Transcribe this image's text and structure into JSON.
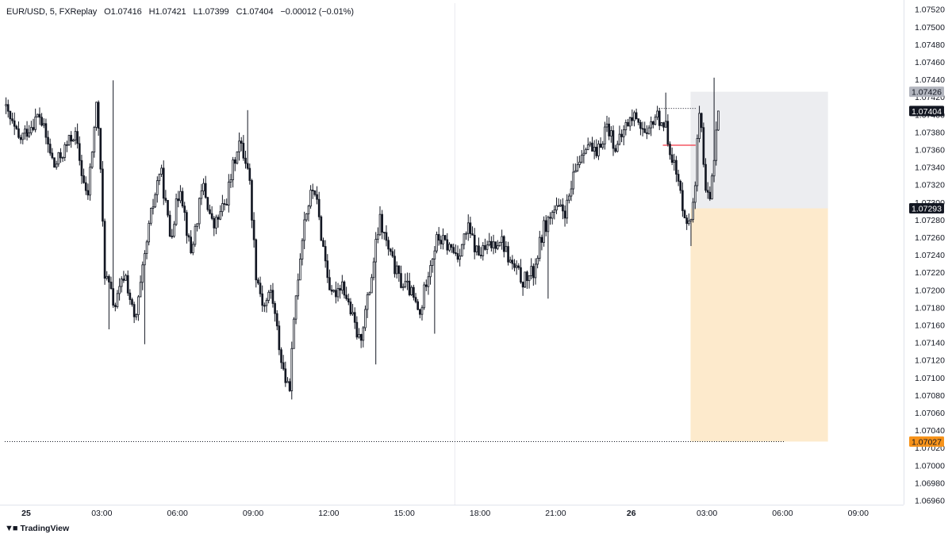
{
  "header": {
    "symbol": "EUR/USD, 5, FXReplay",
    "open": "O1.07416",
    "high": "H1.07421",
    "low": "L1.07399",
    "close": "C1.07404",
    "change": "−0.00012 (−0.01%)"
  },
  "branding": {
    "logo_icon": "tradingview-logo-icon",
    "text": "TradingView"
  },
  "price_tags": [
    {
      "label": "1.07426",
      "value": 1.07426,
      "color": "#b2b5be",
      "text_color": "#131722"
    },
    {
      "label": "1.07404",
      "value": 1.07404,
      "color": "#131722",
      "text_color": "#ffffff"
    },
    {
      "label": "1.07293",
      "value": 1.07293,
      "color": "#131722",
      "text_color": "#ffffff"
    },
    {
      "label": "1.07027",
      "value": 1.07027,
      "color": "#f7931a",
      "text_color": "#131722"
    }
  ],
  "colors": {
    "candle": "#131722",
    "profit_zone": "#ecedf0",
    "stop_zone": "#fdeacc",
    "entry_line": "#f23645",
    "grid": "#e9eaee"
  },
  "chart_data": {
    "type": "candlestick",
    "symbol": "EUR/USD",
    "timeframe_minutes": 5,
    "x_ticks": [
      {
        "label": "25",
        "bold": true,
        "hour": 0
      },
      {
        "label": "03:00",
        "hour": 3
      },
      {
        "label": "06:00",
        "hour": 6
      },
      {
        "label": "09:00",
        "hour": 9
      },
      {
        "label": "12:00",
        "hour": 12
      },
      {
        "label": "15:00",
        "hour": 15
      },
      {
        "label": "18:00",
        "hour": 18
      },
      {
        "label": "21:00",
        "hour": 21
      },
      {
        "label": "26",
        "bold": true,
        "hour": 24
      },
      {
        "label": "03:00",
        "hour": 27
      },
      {
        "label": "06:00",
        "hour": 30
      },
      {
        "label": "09:00",
        "hour": 33
      }
    ],
    "y_ticks": [
      "1.07520",
      "1.07500",
      "1.07480",
      "1.07460",
      "1.07440",
      "1.07420",
      "1.07400",
      "1.07380",
      "1.07360",
      "1.07340",
      "1.07320",
      "1.07300",
      "1.07280",
      "1.07260",
      "1.07240",
      "1.07220",
      "1.07200",
      "1.07180",
      "1.07160",
      "1.07140",
      "1.07120",
      "1.07100",
      "1.07080",
      "1.07060",
      "1.07040",
      "1.07020",
      "1.07000",
      "1.06980",
      "1.06960"
    ],
    "ylim": [
      1.06955,
      1.07527
    ],
    "xlim_hours": [
      -0.85,
      34.8
    ],
    "session_divider_hour": 17.0,
    "price_path": [
      [
        -0.8,
        1.0741
      ],
      [
        -0.2,
        1.0737
      ],
      [
        0.6,
        1.074
      ],
      [
        1.2,
        1.0734
      ],
      [
        2.0,
        1.0738
      ],
      [
        2.5,
        1.073
      ],
      [
        2.9,
        1.0742
      ],
      [
        3.2,
        1.0722
      ],
      [
        3.6,
        1.0718
      ],
      [
        4.0,
        1.0722
      ],
      [
        4.4,
        1.0716
      ],
      [
        5.0,
        1.0728
      ],
      [
        5.4,
        1.0734
      ],
      [
        5.8,
        1.0726
      ],
      [
        6.2,
        1.0732
      ],
      [
        6.6,
        1.0724
      ],
      [
        7.1,
        1.0732
      ],
      [
        7.5,
        1.0727
      ],
      [
        8.0,
        1.073
      ],
      [
        8.5,
        1.0737
      ],
      [
        8.9,
        1.0734
      ],
      [
        9.2,
        1.0722
      ],
      [
        9.5,
        1.0718
      ],
      [
        9.8,
        1.072
      ],
      [
        10.2,
        1.0712
      ],
      [
        10.5,
        1.0708
      ],
      [
        10.8,
        1.072
      ],
      [
        11.1,
        1.0728
      ],
      [
        11.5,
        1.0732
      ],
      [
        11.8,
        1.0726
      ],
      [
        12.2,
        1.0719
      ],
      [
        12.6,
        1.0721
      ],
      [
        13.0,
        1.0717
      ],
      [
        13.3,
        1.0714
      ],
      [
        13.7,
        1.072
      ],
      [
        14.1,
        1.0728
      ],
      [
        14.5,
        1.0724
      ],
      [
        14.9,
        1.0721
      ],
      [
        15.3,
        1.072
      ],
      [
        15.7,
        1.0717
      ],
      [
        16.0,
        1.0722
      ],
      [
        16.4,
        1.0726
      ],
      [
        16.8,
        1.0725
      ],
      [
        17.2,
        1.0724
      ],
      [
        17.6,
        1.0727
      ],
      [
        18.0,
        1.0724
      ],
      [
        18.5,
        1.0725
      ],
      [
        18.9,
        1.0726
      ],
      [
        19.3,
        1.0723
      ],
      [
        19.8,
        1.0721
      ],
      [
        20.2,
        1.0722
      ],
      [
        20.6,
        1.0727
      ],
      [
        21.0,
        1.0729
      ],
      [
        21.5,
        1.0729
      ],
      [
        21.9,
        1.0734
      ],
      [
        22.3,
        1.0737
      ],
      [
        22.7,
        1.0735
      ],
      [
        23.1,
        1.0739
      ],
      [
        23.5,
        1.0736
      ],
      [
        23.9,
        1.0739
      ],
      [
        24.3,
        1.074
      ],
      [
        24.7,
        1.0737
      ],
      [
        25.0,
        1.074
      ],
      [
        25.4,
        1.0739
      ],
      [
        25.8,
        1.0734
      ],
      [
        26.1,
        1.073
      ],
      [
        26.4,
        1.0727
      ],
      [
        26.6,
        1.0732
      ],
      [
        26.8,
        1.0741
      ],
      [
        27.0,
        1.0731
      ],
      [
        27.2,
        1.073
      ],
      [
        27.5,
        1.074
      ]
    ],
    "extreme_points": [
      {
        "hour": 3.3,
        "low": 1.07155
      },
      {
        "hour": 3.45,
        "high": 1.07439
      },
      {
        "hour": 4.7,
        "low": 1.07138
      },
      {
        "hour": 8.8,
        "high": 1.07405
      },
      {
        "hour": 10.55,
        "low": 1.07075
      },
      {
        "hour": 13.9,
        "low": 1.07115
      },
      {
        "hour": 16.2,
        "low": 1.0715
      },
      {
        "hour": 20.7,
        "low": 1.0719
      },
      {
        "hour": 25.4,
        "high": 1.07425
      },
      {
        "hour": 26.35,
        "low": 1.0725
      },
      {
        "hour": 27.3,
        "high": 1.07442
      }
    ],
    "drawings": {
      "position": {
        "type": "short",
        "start_hour": 26.35,
        "end_hour": 31.8,
        "entry": 1.07293,
        "target_top": 1.07426,
        "stop": 1.07027
      },
      "entry_marker": {
        "start_hour": 25.25,
        "end_hour": 26.55,
        "price": 1.07365
      },
      "dotted_level_upper": {
        "start_hour": 25.1,
        "end_hour": 26.55,
        "price": 1.07407
      },
      "dotted_level_stop": {
        "start_hour": -0.85,
        "end_hour": 30.1,
        "price": 1.07027
      }
    },
    "last_price": 1.07404
  }
}
